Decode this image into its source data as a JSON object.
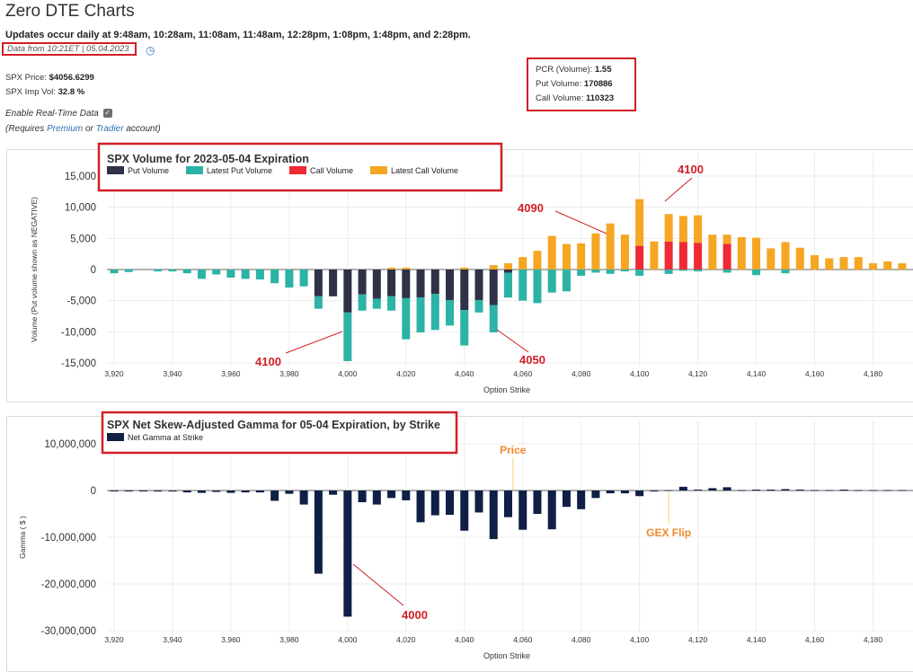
{
  "page": {
    "title": "Zero DTE Charts",
    "updates": "Updates occur daily at 9:48am, 10:28am, 11:08am, 11:48am, 12:28pm, 1:08pm, 1:48pm, and 2:28pm.",
    "data_from_prefix": "Data from 10:21ET |",
    "data_from_date": "05.04.2023",
    "spx_price_label": "SPX Price:",
    "spx_price_value": "$4056.6299",
    "spx_iv_label": "SPX Imp Vol:",
    "spx_iv_value": "32.8 %",
    "realtime_label": "Enable Real-Time Data",
    "requires_prefix": "(Requires",
    "premium_link": "Premium",
    "or_text": "or",
    "tradier_link": "Tradier",
    "account_suffix": "account)"
  },
  "stats": {
    "pcr_label": "PCR (Volume):",
    "pcr_value": "1.55",
    "put_label": "Put Volume:",
    "put_value": "170886",
    "call_label": "Call Volume:",
    "call_value": "110323"
  },
  "colors": {
    "put": "#2f3147",
    "latest_put": "#2bb3a6",
    "call": "#ee2a35",
    "latest_call": "#f5a623",
    "gamma": "#0f1f45",
    "annotation_red": "#d21f26",
    "annotation_orange": "#f08a2c",
    "price_line": "#f7d774"
  },
  "chart_data": [
    {
      "type": "bar",
      "title": "SPX Volume for 2023-05-04 Expiration",
      "xlabel": "Option Strike",
      "ylabel": "Volume (Put volume shown as NEGATIVE)",
      "ylim": [
        -15500,
        16000
      ],
      "yticks": [
        15000,
        10000,
        5000,
        0,
        -5000,
        -10000,
        -15000
      ],
      "ytick_labels": [
        "15,000",
        "10,000",
        "5,000",
        "0",
        "-5,000",
        "-10,000",
        "-15,000"
      ],
      "xticks": [
        3920,
        3940,
        3960,
        3980,
        4000,
        4020,
        4040,
        4060,
        4080,
        4100,
        4120,
        4140,
        4160,
        4180
      ],
      "xtick_labels": [
        "3,920",
        "3,940",
        "3,960",
        "3,980",
        "4,000",
        "4,020",
        "4,040",
        "4,060",
        "4,080",
        "4,100",
        "4,120",
        "4,140",
        "4,160",
        "4,180"
      ],
      "legend": [
        "Put Volume",
        "Latest Put Volume",
        "Call Volume",
        "Latest Call Volume"
      ],
      "strikes": [
        3920,
        3925,
        3930,
        3935,
        3940,
        3945,
        3950,
        3955,
        3960,
        3965,
        3970,
        3975,
        3980,
        3985,
        3990,
        3995,
        4000,
        4005,
        4010,
        4015,
        4020,
        4025,
        4030,
        4035,
        4040,
        4045,
        4050,
        4055,
        4060,
        4065,
        4070,
        4075,
        4080,
        4085,
        4090,
        4095,
        4100,
        4105,
        4110,
        4115,
        4120,
        4125,
        4130,
        4135,
        4140,
        4145,
        4150,
        4155,
        4160,
        4165,
        4170,
        4175,
        4180,
        4185,
        4190
      ],
      "series": [
        {
          "name": "Put Volume",
          "values": [
            0,
            0,
            0,
            0,
            0,
            0,
            0,
            0,
            0,
            0,
            0,
            0,
            0,
            0,
            -4300,
            -4300,
            -6900,
            -4000,
            -4700,
            -4300,
            -4600,
            -4500,
            -3900,
            -4900,
            -6500,
            -4900,
            -5700,
            -500,
            0,
            0,
            0,
            0,
            0,
            0,
            0,
            0,
            0,
            0,
            0,
            0,
            0,
            0,
            0,
            0,
            0,
            0,
            0,
            0,
            0,
            0,
            0,
            0,
            0,
            0,
            0
          ]
        },
        {
          "name": "Latest Put Volume",
          "values": [
            -600,
            -400,
            0,
            -300,
            -300,
            -600,
            -1500,
            -800,
            -1300,
            -1500,
            -1600,
            -2200,
            -2900,
            -2700,
            -2000,
            0,
            -7800,
            -2600,
            -1600,
            -2300,
            -6600,
            -5600,
            -5800,
            -4100,
            -5700,
            -2000,
            -4400,
            -4000,
            -5000,
            -5400,
            -3700,
            -3500,
            -1000,
            -500,
            -700,
            -300,
            -1000,
            0,
            -700,
            -200,
            -300,
            0,
            -500,
            0,
            -900,
            0,
            -600,
            0,
            0,
            0,
            0,
            0,
            0,
            0,
            0
          ]
        },
        {
          "name": "Call Volume",
          "values": [
            0,
            0,
            0,
            0,
            0,
            0,
            0,
            0,
            0,
            0,
            0,
            0,
            0,
            0,
            0,
            0,
            0,
            0,
            0,
            0,
            0,
            0,
            0,
            0,
            0,
            0,
            0,
            0,
            0,
            0,
            0,
            0,
            0,
            0,
            0,
            0,
            3800,
            0,
            4500,
            4400,
            4300,
            0,
            4100,
            0,
            0,
            0,
            0,
            0,
            0,
            0,
            0,
            0,
            0,
            0,
            0
          ]
        },
        {
          "name": "Latest Call Volume",
          "values": [
            0,
            0,
            0,
            0,
            0,
            0,
            0,
            0,
            0,
            0,
            0,
            0,
            0,
            0,
            0,
            0,
            0,
            0,
            0,
            300,
            300,
            0,
            0,
            0,
            300,
            0,
            700,
            1000,
            2000,
            3000,
            5400,
            4100,
            4200,
            5800,
            7400,
            5600,
            7500,
            4500,
            4400,
            4200,
            4400,
            5600,
            1500,
            5200,
            5100,
            3400,
            4400,
            3500,
            2300,
            1800,
            2000,
            2000,
            1000,
            1300,
            1000
          ]
        }
      ]
    },
    {
      "type": "bar",
      "title": "SPX Net Skew-Adjusted Gamma for 05-04 Expiration, by Strike",
      "xlabel": "Option Strike",
      "ylabel": "Gamma ( $ )",
      "ylim": [
        -30000000,
        12000000
      ],
      "yticks": [
        10000000,
        0,
        -10000000,
        -20000000,
        -30000000
      ],
      "ytick_labels": [
        "10,000,000",
        "0",
        "-10,000,000",
        "-20,000,000",
        "-30,000,000"
      ],
      "xticks": [
        3920,
        3940,
        3960,
        3980,
        4000,
        4020,
        4040,
        4060,
        4080,
        4100,
        4120,
        4140,
        4160,
        4180
      ],
      "xtick_labels": [
        "3,920",
        "3,940",
        "3,960",
        "3,980",
        "4,000",
        "4,020",
        "4,040",
        "4,060",
        "4,080",
        "4,100",
        "4,120",
        "4,140",
        "4,160",
        "4,180"
      ],
      "legend": [
        "Net Gamma at Strike"
      ],
      "price_strike": 4056.63,
      "gex_flip_strike": 4110,
      "strikes": [
        3920,
        3925,
        3930,
        3935,
        3940,
        3945,
        3950,
        3955,
        3960,
        3965,
        3970,
        3975,
        3980,
        3985,
        3990,
        3995,
        4000,
        4005,
        4010,
        4015,
        4020,
        4025,
        4030,
        4035,
        4040,
        4045,
        4050,
        4055,
        4060,
        4065,
        4070,
        4075,
        4080,
        4085,
        4090,
        4095,
        4100,
        4105,
        4110,
        4115,
        4120,
        4125,
        4130,
        4135,
        4140,
        4145,
        4150,
        4155,
        4160,
        4165,
        4170,
        4175,
        4180,
        4185,
        4190
      ],
      "values": [
        -100000,
        -100000,
        -100000,
        -200000,
        -200000,
        -400000,
        -500000,
        -300000,
        -500000,
        -400000,
        -400000,
        -2200000,
        -700000,
        -3000000,
        -17800000,
        -900000,
        -27000000,
        -2500000,
        -3000000,
        -1600000,
        -2100000,
        -6800000,
        -5300000,
        -5200000,
        -8600000,
        -4700000,
        -10400000,
        -5700000,
        -8400000,
        -5000000,
        -8300000,
        -3500000,
        -4000000,
        -1600000,
        -600000,
        -600000,
        -1200000,
        -200000,
        100000,
        800000,
        200000,
        500000,
        700000,
        100000,
        200000,
        200000,
        300000,
        200000,
        100000,
        100000,
        200000,
        100000,
        100000,
        100000,
        100000
      ]
    }
  ],
  "annotations": {
    "vol_4100_call": "4100",
    "vol_4090_call": "4090",
    "vol_4100_put": "4100",
    "vol_4050_put": "4050",
    "gamma_4000": "4000",
    "price_label": "Price",
    "gex_flip_label": "GEX Flip"
  }
}
